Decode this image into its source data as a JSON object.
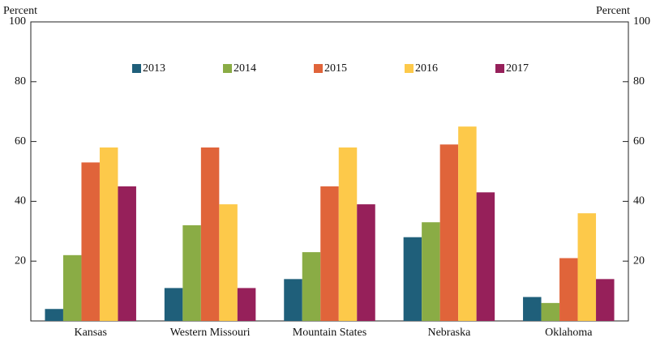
{
  "chart_data": {
    "type": "bar",
    "ylabel": "Percent",
    "y2label": "Percent",
    "categories": [
      "Kansas",
      "Western Missouri",
      "Mountain States",
      "Nebraska",
      "Oklahoma"
    ],
    "series": [
      {
        "name": "2013",
        "color": "#1f5f7a",
        "values": [
          4,
          11,
          14,
          28,
          8
        ]
      },
      {
        "name": "2014",
        "color": "#8aac45",
        "values": [
          22,
          32,
          23,
          33,
          6
        ]
      },
      {
        "name": "2015",
        "color": "#e0643a",
        "values": [
          53,
          58,
          45,
          59,
          21
        ]
      },
      {
        "name": "2016",
        "color": "#fdc94a",
        "values": [
          58,
          39,
          58,
          65,
          36
        ]
      },
      {
        "name": "2017",
        "color": "#96205a",
        "values": [
          45,
          11,
          39,
          43,
          14
        ]
      }
    ],
    "ylim": [
      0,
      100
    ],
    "yticks": [
      20,
      40,
      60,
      80,
      100
    ],
    "y2lim": [
      0,
      100
    ],
    "y2ticks": [
      20,
      40,
      60,
      80,
      100
    ],
    "grid": false,
    "legend": "top"
  }
}
